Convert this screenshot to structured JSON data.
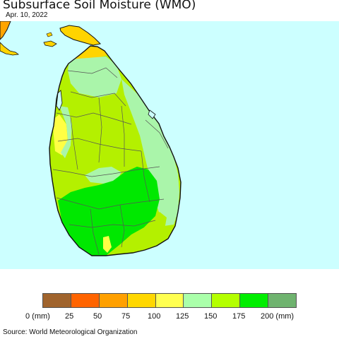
{
  "header": {
    "title": "Subsurface Soil Moisture (WMO)",
    "date": "Apr. 10, 2022"
  },
  "map": {
    "region": "Sri Lanka",
    "sea_color": "#ccffff",
    "outline_color": "#111111",
    "district_line_color": "#555555",
    "zones": [
      {
        "category": "75-100",
        "color": "#ffd400"
      },
      {
        "category": "100-125",
        "color": "#ffff44"
      },
      {
        "category": "125-150",
        "color": "#aaf5aa"
      },
      {
        "category": "150-175",
        "color": "#b4f000"
      },
      {
        "category": "175-200",
        "color": "#00e800"
      },
      {
        "category": "50-75",
        "color": "#ffa500"
      }
    ]
  },
  "legend": {
    "colors": [
      "#a0642d",
      "#ff6400",
      "#ffa000",
      "#ffd700",
      "#ffff50",
      "#aaffaa",
      "#b4ff00",
      "#00ee00",
      "#6fb36f"
    ],
    "labels": [
      "0 (mm)",
      "25",
      "50",
      "75",
      "100",
      "125",
      "150",
      "175",
      "200 (mm)"
    ]
  },
  "footer": {
    "source": "Source: World Meteorological Organization"
  }
}
